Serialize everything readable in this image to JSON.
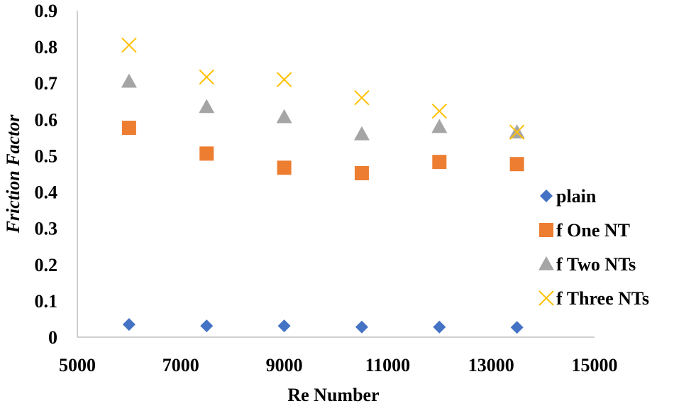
{
  "chart_data": {
    "type": "scatter",
    "title": "",
    "xlabel": "Re Number",
    "ylabel": "Friction Factor",
    "xlim": [
      5000,
      15000
    ],
    "ylim": [
      0,
      0.9
    ],
    "xticks": [
      5000,
      7000,
      9000,
      11000,
      13000,
      15000
    ],
    "xtick_labels": [
      "5000",
      "7000",
      "9000",
      "11000",
      "13000",
      "15000"
    ],
    "yticks": [
      0,
      0.1,
      0.2,
      0.3,
      0.4,
      0.5,
      0.6,
      0.7,
      0.8,
      0.9
    ],
    "ytick_labels": [
      "0",
      "0.1",
      "0.2",
      "0.3",
      "0.4",
      "0.5",
      "0.6",
      "0.7",
      "0.8",
      "0.9"
    ],
    "grid": false,
    "legend_position": "right",
    "x": [
      6000,
      7500,
      9000,
      10500,
      12000,
      13500
    ],
    "series": [
      {
        "name": "plain",
        "marker": "diamond",
        "color": "#4472C4",
        "values": [
          0.035,
          0.031,
          0.031,
          0.028,
          0.028,
          0.027
        ]
      },
      {
        "name": "f One NT",
        "marker": "square",
        "color": "#ED7D31",
        "values": [
          0.577,
          0.506,
          0.467,
          0.452,
          0.483,
          0.477
        ]
      },
      {
        "name": "f Two NTs",
        "marker": "triangle",
        "color": "#A5A5A5",
        "values": [
          0.705,
          0.635,
          0.607,
          0.56,
          0.58,
          0.565
        ]
      },
      {
        "name": "f Three NTs",
        "marker": "x",
        "color": "#FFC000",
        "values": [
          0.805,
          0.717,
          0.71,
          0.66,
          0.623,
          0.565
        ]
      }
    ]
  }
}
